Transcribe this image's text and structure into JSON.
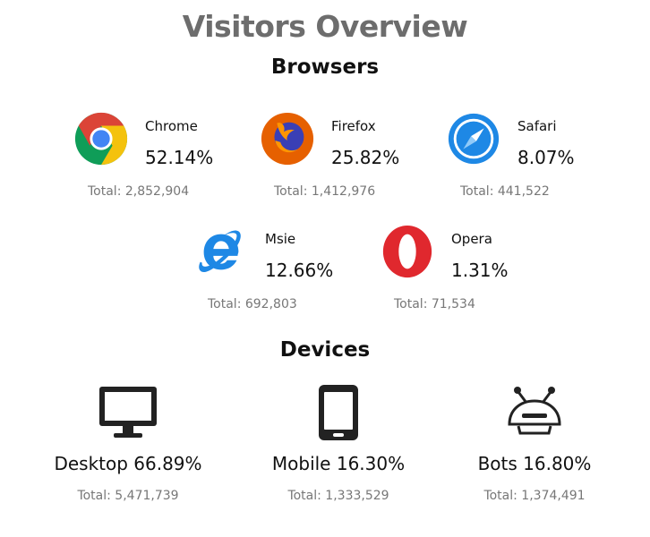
{
  "title": "Visitors Overview",
  "browsers_heading": "Browsers",
  "browsers": [
    {
      "name": "Chrome",
      "percent": "52.14%",
      "total": "Total: 2,852,904",
      "icon": "chrome-icon"
    },
    {
      "name": "Firefox",
      "percent": "25.82%",
      "total": "Total: 1,412,976",
      "icon": "firefox-icon"
    },
    {
      "name": "Safari",
      "percent": "8.07%",
      "total": "Total: 441,522",
      "icon": "safari-icon"
    },
    {
      "name": "Msie",
      "percent": "12.66%",
      "total": "Total: 692,803",
      "icon": "ie-icon"
    },
    {
      "name": "Opera",
      "percent": "1.31%",
      "total": "Total: 71,534",
      "icon": "opera-icon"
    }
  ],
  "devices_heading": "Devices",
  "devices": [
    {
      "label": "Desktop 66.89%",
      "total": "Total: 5,471,739",
      "icon": "desktop-icon"
    },
    {
      "label": "Mobile 16.30%",
      "total": "Total: 1,333,529",
      "icon": "mobile-icon"
    },
    {
      "label": "Bots 16.80%",
      "total": "Total: 1,374,491",
      "icon": "bot-icon"
    }
  ],
  "colors": {
    "title": "#6d6d6d",
    "chrome_red": "#db4437",
    "chrome_yellow": "#f4c20d",
    "chrome_green": "#0f9d58",
    "chrome_blue": "#4285f4",
    "firefox_orange": "#e66000",
    "firefox_blue": "#3a3fb5",
    "safari_blue": "#1e88e5",
    "ie_blue": "#1e88e5",
    "opera_red": "#e0282e"
  }
}
